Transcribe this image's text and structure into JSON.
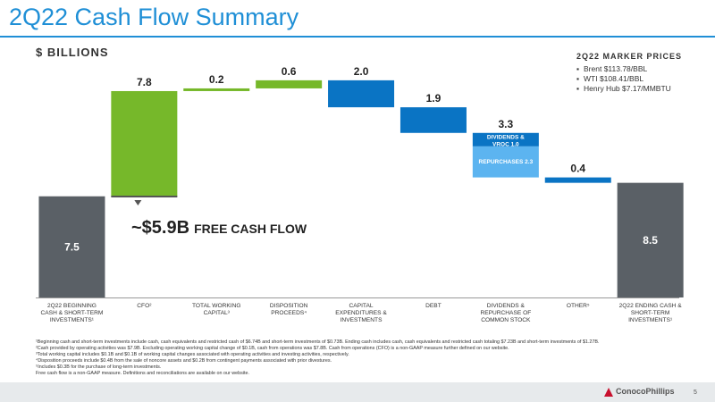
{
  "header": {
    "title": "2Q22 Cash Flow Summary",
    "units": "$ BILLIONS"
  },
  "marker_prices": {
    "title": "2Q22 MARKER PRICES",
    "items": [
      "Brent $113.78/BBL",
      "WTI $108.41/BBL",
      "Henry Hub $7.17/MMBTU"
    ]
  },
  "callout": {
    "amount": "~$5.9B",
    "text": "FREE CASH FLOW"
  },
  "chart_data": {
    "type": "bar",
    "subtype": "waterfall",
    "ylabel": "",
    "categories": [
      "2Q22 BEGINNING CASH & SHORT-TERM INVESTMENTS¹",
      "CFO²",
      "TOTAL WORKING CAPITAL³",
      "DISPOSITION PROCEEDS⁴",
      "CAPITAL EXPENDITURES & INVESTMENTS",
      "DEBT",
      "DIVIDENDS & REPURCHASE OF COMMON STOCK",
      "OTHER⁵",
      "2Q22 ENDING CASH & SHORT-TERM INVESTMENTS¹"
    ],
    "bars": [
      {
        "kind": "total",
        "value": 7.5,
        "label": "7.5"
      },
      {
        "kind": "increase",
        "value": 7.8,
        "label": "7.8"
      },
      {
        "kind": "increase",
        "value": 0.2,
        "label": "0.2"
      },
      {
        "kind": "increase",
        "value": 0.6,
        "label": "0.6"
      },
      {
        "kind": "decrease",
        "value": 2.0,
        "label": "2.0"
      },
      {
        "kind": "decrease",
        "value": 1.9,
        "label": "1.9"
      },
      {
        "kind": "decrease",
        "value": 3.3,
        "label": "3.3",
        "segments": [
          {
            "name": "DIVIDENDS & VROC",
            "value": 1.0,
            "label": "DIVIDENDS & VROC 1.0"
          },
          {
            "name": "REPURCHASES",
            "value": 2.3,
            "label": "REPURCHASES 2.3"
          }
        ]
      },
      {
        "kind": "decrease",
        "value": 0.4,
        "label": "0.4"
      },
      {
        "kind": "total",
        "value": 8.5,
        "label": "8.5"
      }
    ],
    "colors": {
      "total": "#5a6066",
      "increase": "#76b82a",
      "decrease": "#0a74c4",
      "segment_light": "#5cb4f0"
    },
    "ylim": [
      0,
      16.5
    ],
    "grid": false,
    "legend": "none"
  },
  "footnotes": [
    "¹Beginning cash and short-term investments include cash, cash equivalents and restricted cash of $6.74B and short-term investments of $0.73B. Ending cash includes cash, cash equivalents and restricted cash totaling $7.23B and short-term investments of $1.27B.",
    "²Cash provided by operating activities was $7.9B. Excluding operating working capital change of $0.1B, cash from operations was $7.8B. Cash from operations (CFO) is a non-GAAP measure further defined on our website.",
    "³Total working capital includes $0.1B and $0.1B of working capital changes associated with operating activities and investing activities, respectively.",
    "⁴Disposition proceeds include $0.4B from the sale of noncore assets and $0.2B from contingent payments associated with prior divestures.",
    "⁵Includes $0.3B for the purchase of long-term investments.",
    "Free cash flow is a non-GAAP measure. Definitions and reconciliations are available on our website."
  ],
  "footer": {
    "logo": "ConocoPhillips",
    "page": "5"
  }
}
